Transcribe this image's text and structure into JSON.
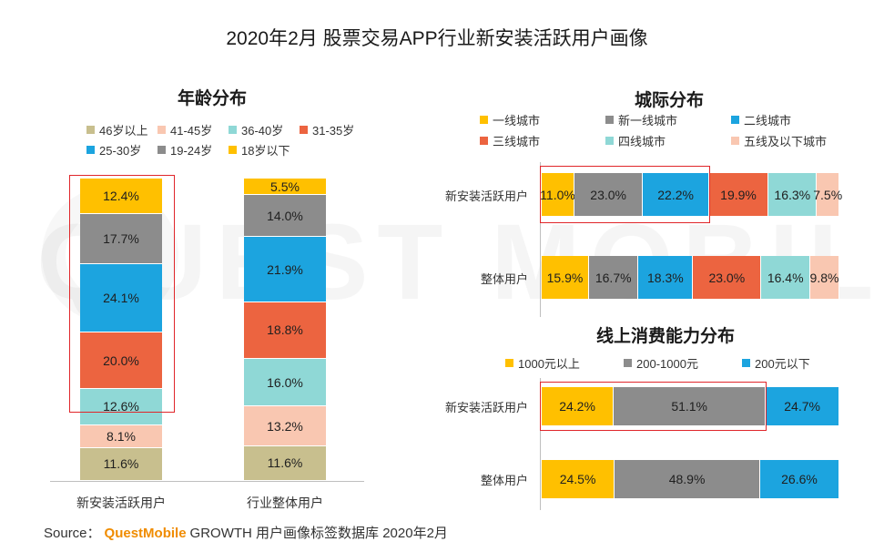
{
  "title": "2020年2月 股票交易APP行业新安装活跃用户画像",
  "watermark": "QUEST MOBILE",
  "source": {
    "prefix": "Source：",
    "brand": "QuestMobile",
    "rest": "GROWTH 用户画像标签数据库 2020年2月"
  },
  "colors": {
    "yellow": "#ffc000",
    "gray": "#8c8c8c",
    "blue": "#1ca4df",
    "orange": "#ec6440",
    "teal": "#8fd8d6",
    "peach": "#f9c7b1",
    "khaki": "#c8bf8e",
    "highlight": "#e0262a"
  },
  "chart_data": [
    {
      "type": "bar",
      "stacked": true,
      "title": "年龄分布",
      "legend": [
        "46岁以上",
        "41-45岁",
        "36-40岁",
        "31-35岁",
        "25-30岁",
        "19-24岁",
        "18岁以下"
      ],
      "categories": [
        "新安装活跃用户",
        "行业整体用户"
      ],
      "series": [
        {
          "name": "46岁以上",
          "color": "#c8bf8e",
          "values": [
            11.6,
            11.6
          ],
          "labels": [
            "11.6%",
            "11.6%"
          ]
        },
        {
          "name": "41-45岁",
          "color": "#f9c7b1",
          "values": [
            8.1,
            13.2
          ],
          "labels": [
            "8.1%",
            "13.2%"
          ]
        },
        {
          "name": "36-40岁",
          "color": "#8fd8d6",
          "values": [
            12.6,
            16.0
          ],
          "labels": [
            "12.6%",
            "16.0%"
          ]
        },
        {
          "name": "31-35岁",
          "color": "#ec6440",
          "values": [
            20.0,
            18.8
          ],
          "labels": [
            "20.0%",
            "18.8%"
          ]
        },
        {
          "name": "25-30岁",
          "color": "#1ca4df",
          "values": [
            24.1,
            21.9
          ],
          "labels": [
            "24.1%",
            "21.9%"
          ]
        },
        {
          "name": "19-24岁",
          "color": "#8c8c8c",
          "values": [
            17.7,
            14.0
          ],
          "labels": [
            "17.7%",
            "14.0%"
          ]
        },
        {
          "name": "18岁以下",
          "color": "#ffc000",
          "values": [
            12.4,
            5.5
          ],
          "labels": [
            "12.4%",
            "5.5%"
          ]
        }
      ],
      "highlight": {
        "category": "新安装活跃用户",
        "series_from": "31-35岁",
        "series_to": "18岁以下"
      }
    },
    {
      "type": "bar",
      "orientation": "horizontal",
      "stacked": true,
      "title": "城际分布",
      "legend": [
        "一线城市",
        "新一线城市",
        "二线城市",
        "三线城市",
        "四线城市",
        "五线及以下城市"
      ],
      "categories": [
        "新安装活跃用户",
        "整体用户"
      ],
      "series": [
        {
          "name": "一线城市",
          "color": "#ffc000",
          "values": [
            11.0,
            15.9
          ],
          "labels": [
            "11.0%",
            "15.9%"
          ]
        },
        {
          "name": "新一线城市",
          "color": "#8c8c8c",
          "values": [
            23.0,
            16.7
          ],
          "labels": [
            "23.0%",
            "16.7%"
          ]
        },
        {
          "name": "二线城市",
          "color": "#1ca4df",
          "values": [
            22.2,
            18.3
          ],
          "labels": [
            "22.2%",
            "18.3%"
          ]
        },
        {
          "name": "三线城市",
          "color": "#ec6440",
          "values": [
            19.9,
            23.0
          ],
          "labels": [
            "19.9%",
            "23.0%"
          ]
        },
        {
          "name": "四线城市",
          "color": "#8fd8d6",
          "values": [
            16.3,
            16.4
          ],
          "labels": [
            "16.3%",
            "16.4%"
          ]
        },
        {
          "name": "五线及以下城市",
          "color": "#f9c7b1",
          "values": [
            7.5,
            9.8
          ],
          "labels": [
            "7.5%",
            "9.8%"
          ]
        }
      ],
      "highlight": {
        "category": "新安装活跃用户",
        "series_from": "一线城市",
        "series_to": "二线城市"
      }
    },
    {
      "type": "bar",
      "orientation": "horizontal",
      "stacked": true,
      "title": "线上消费能力分布",
      "legend": [
        "1000元以上",
        "200-1000元",
        "200元以下"
      ],
      "categories": [
        "新安装活跃用户",
        "整体用户"
      ],
      "series": [
        {
          "name": "1000元以上",
          "color": "#ffc000",
          "values": [
            24.2,
            24.5
          ],
          "labels": [
            "24.2%",
            "24.5%"
          ]
        },
        {
          "name": "200-1000元",
          "color": "#8c8c8c",
          "values": [
            51.1,
            48.9
          ],
          "labels": [
            "51.1%",
            "48.9%"
          ]
        },
        {
          "name": "200元以下",
          "color": "#1ca4df",
          "values": [
            24.7,
            26.6
          ],
          "labels": [
            "24.7%",
            "26.6%"
          ]
        }
      ],
      "highlight": {
        "category": "新安装活跃用户",
        "series_from": "1000元以上",
        "series_to": "200-1000元"
      }
    }
  ]
}
